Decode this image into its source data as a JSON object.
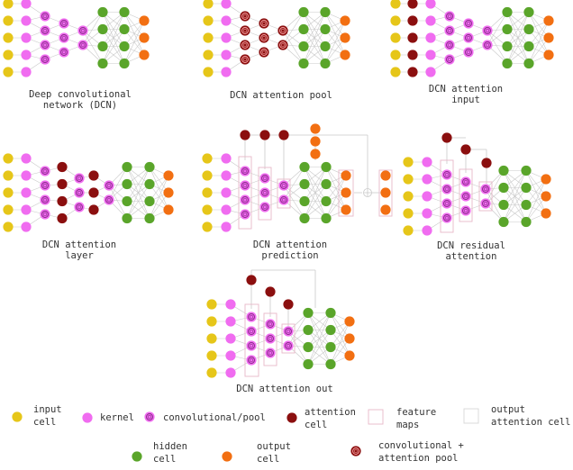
{
  "colors": {
    "input": "#e6c619",
    "kernel": "#f06cf0",
    "conv": "#f06cf0",
    "attention": "#8b0f0f",
    "hidden": "#5aa52a",
    "output": "#f26f12",
    "edge": "#c9c9c9",
    "feature_box": "#e8b8c8",
    "output_attention_box": "#d8d8d8"
  },
  "panels": [
    {
      "id": "dcn",
      "caption": [
        "Deep convolutional",
        "network (DCN)"
      ]
    },
    {
      "id": "attention-pool",
      "caption": [
        "DCN attention pool"
      ]
    },
    {
      "id": "attention-input",
      "caption": [
        "DCN attention",
        "input"
      ]
    },
    {
      "id": "attention-layer",
      "caption": [
        "DCN attention",
        "layer"
      ]
    },
    {
      "id": "attention-prediction",
      "caption": [
        "DCN attention",
        "prediction"
      ]
    },
    {
      "id": "residual-attention",
      "caption": [
        "DCN residual",
        "attention"
      ]
    },
    {
      "id": "attention-out",
      "caption": [
        "DCN attention out"
      ]
    }
  ],
  "legend": [
    {
      "id": "input-cell",
      "icon": "input-cell-icon",
      "label": [
        "input",
        "cell"
      ]
    },
    {
      "id": "kernel",
      "icon": "kernel-icon",
      "label": [
        "kernel"
      ]
    },
    {
      "id": "conv-pool",
      "icon": "convolutional-pool-icon",
      "label": [
        "convolutional/pool"
      ]
    },
    {
      "id": "attention-cell",
      "icon": "attention-cell-icon",
      "label": [
        "attention",
        "cell"
      ]
    },
    {
      "id": "feature-maps",
      "icon": "feature-maps-icon",
      "label": [
        "feature",
        "maps"
      ]
    },
    {
      "id": "output-attention-cell",
      "icon": "output-attention-cell-icon",
      "label": [
        "output",
        "attention cell"
      ]
    },
    {
      "id": "hidden-cell",
      "icon": "hidden-cell-icon",
      "label": [
        "hidden",
        "cell"
      ]
    },
    {
      "id": "output-cell",
      "icon": "output-cell-icon",
      "label": [
        "output",
        "cell"
      ]
    },
    {
      "id": "conv-attention-pool",
      "icon": "convolutional-attention-pool-icon",
      "label": [
        "convolutional +",
        "attention pool"
      ]
    }
  ]
}
